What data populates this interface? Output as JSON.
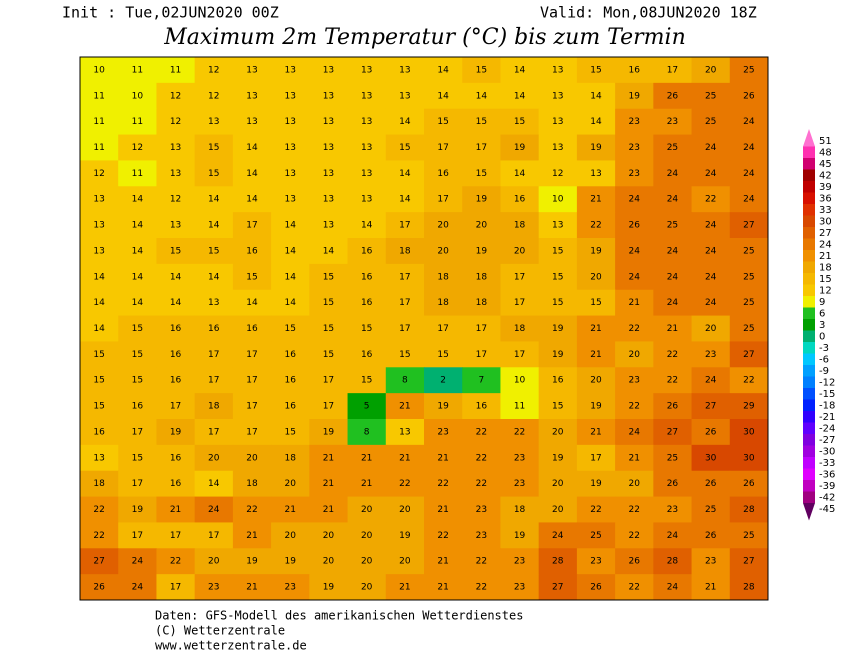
{
  "header": {
    "init": "Init : Tue,02JUN2020 00Z",
    "valid": "Valid: Mon,08JUN2020 18Z",
    "title": "Maximum 2m Temperatur (°C) bis zum Termin"
  },
  "grid": [
    [
      10,
      11,
      11,
      12,
      13,
      13,
      13,
      13,
      13,
      14,
      15,
      14,
      13,
      15,
      16,
      17,
      20,
      25
    ],
    [
      11,
      10,
      12,
      12,
      13,
      13,
      13,
      13,
      13,
      14,
      14,
      14,
      13,
      14,
      19,
      26,
      25,
      26
    ],
    [
      11,
      11,
      12,
      13,
      13,
      13,
      13,
      13,
      14,
      15,
      15,
      15,
      13,
      14,
      23,
      23,
      25,
      24
    ],
    [
      11,
      12,
      13,
      15,
      14,
      13,
      13,
      13,
      15,
      17,
      17,
      19,
      13,
      19,
      23,
      25,
      24,
      24
    ],
    [
      12,
      11,
      13,
      15,
      14,
      13,
      13,
      13,
      14,
      16,
      15,
      14,
      12,
      13,
      23,
      24,
      24,
      24
    ],
    [
      13,
      14,
      12,
      14,
      14,
      13,
      13,
      13,
      14,
      17,
      19,
      16,
      10,
      21,
      24,
      24,
      22,
      24
    ],
    [
      13,
      14,
      13,
      14,
      17,
      14,
      13,
      14,
      17,
      20,
      20,
      18,
      13,
      22,
      26,
      25,
      24,
      27
    ],
    [
      13,
      14,
      15,
      15,
      16,
      14,
      14,
      16,
      18,
      20,
      19,
      20,
      15,
      19,
      24,
      24,
      24,
      25
    ],
    [
      14,
      14,
      14,
      14,
      15,
      14,
      15,
      16,
      17,
      18,
      18,
      17,
      15,
      20,
      24,
      24,
      24,
      25
    ],
    [
      14,
      14,
      14,
      13,
      14,
      14,
      15,
      16,
      17,
      18,
      18,
      17,
      15,
      15,
      21,
      24,
      24,
      25
    ],
    [
      14,
      15,
      16,
      16,
      16,
      15,
      15,
      15,
      17,
      17,
      17,
      18,
      19,
      21,
      22,
      21,
      20,
      25
    ],
    [
      15,
      15,
      16,
      17,
      17,
      16,
      15,
      16,
      15,
      15,
      17,
      17,
      19,
      21,
      20,
      22,
      23,
      27
    ],
    [
      15,
      15,
      16,
      17,
      17,
      16,
      17,
      15,
      8,
      2,
      7,
      10,
      16,
      20,
      23,
      22,
      24,
      22
    ],
    [
      15,
      16,
      17,
      18,
      17,
      16,
      17,
      5,
      21,
      19,
      16,
      11,
      15,
      19,
      22,
      26,
      27,
      29
    ],
    [
      16,
      17,
      19,
      17,
      17,
      15,
      19,
      8,
      13,
      23,
      22,
      22,
      20,
      21,
      24,
      27,
      26,
      30
    ],
    [
      13,
      15,
      16,
      20,
      20,
      18,
      21,
      21,
      21,
      21,
      22,
      23,
      19,
      17,
      21,
      25,
      30,
      30
    ],
    [
      18,
      17,
      16,
      14,
      18,
      20,
      21,
      21,
      22,
      22,
      22,
      23,
      20,
      19,
      20,
      26,
      26,
      26
    ],
    [
      22,
      19,
      21,
      24,
      22,
      21,
      21,
      20,
      20,
      21,
      23,
      18,
      20,
      22,
      22,
      23,
      25,
      28
    ],
    [
      22,
      17,
      17,
      17,
      21,
      20,
      20,
      20,
      19,
      22,
      23,
      19,
      24,
      25,
      22,
      24,
      26,
      25
    ],
    [
      27,
      24,
      22,
      20,
      19,
      19,
      20,
      20,
      20,
      21,
      22,
      23,
      28,
      23,
      26,
      28,
      23,
      27
    ],
    [
      26,
      24,
      17,
      23,
      21,
      23,
      19,
      20,
      21,
      21,
      22,
      23,
      27,
      26,
      22,
      24,
      21,
      28
    ]
  ],
  "legend": {
    "levels": [
      51,
      48,
      45,
      42,
      39,
      36,
      33,
      30,
      27,
      24,
      21,
      18,
      15,
      12,
      9,
      6,
      3,
      0,
      -3,
      -6,
      -9,
      -12,
      -15,
      -18,
      -21,
      -24,
      -27,
      -30,
      -33,
      -36,
      -39,
      -42,
      -45
    ],
    "colors": [
      "#ff70d0",
      "#ff30b0",
      "#d00070",
      "#a00000",
      "#c00000",
      "#d81000",
      "#e03000",
      "#d84800",
      "#e06000",
      "#e87800",
      "#f09000",
      "#f0a800",
      "#f5b800",
      "#f8c800",
      "#f0f000",
      "#20c020",
      "#00a000",
      "#00b070",
      "#00d8c0",
      "#00c8ff",
      "#00a0ff",
      "#0080ff",
      "#0050ff",
      "#0020ff",
      "#3000ff",
      "#6000ff",
      "#8000e0",
      "#a000e0",
      "#c000ff",
      "#e000ff",
      "#c000c0",
      "#a00080",
      "#600060"
    ]
  },
  "footer": {
    "line1": "Daten: GFS-Modell des amerikanischen Wetterdienstes",
    "line2": "(C) Wetterzentrale",
    "line3": "www.wetterzentrale.de"
  }
}
